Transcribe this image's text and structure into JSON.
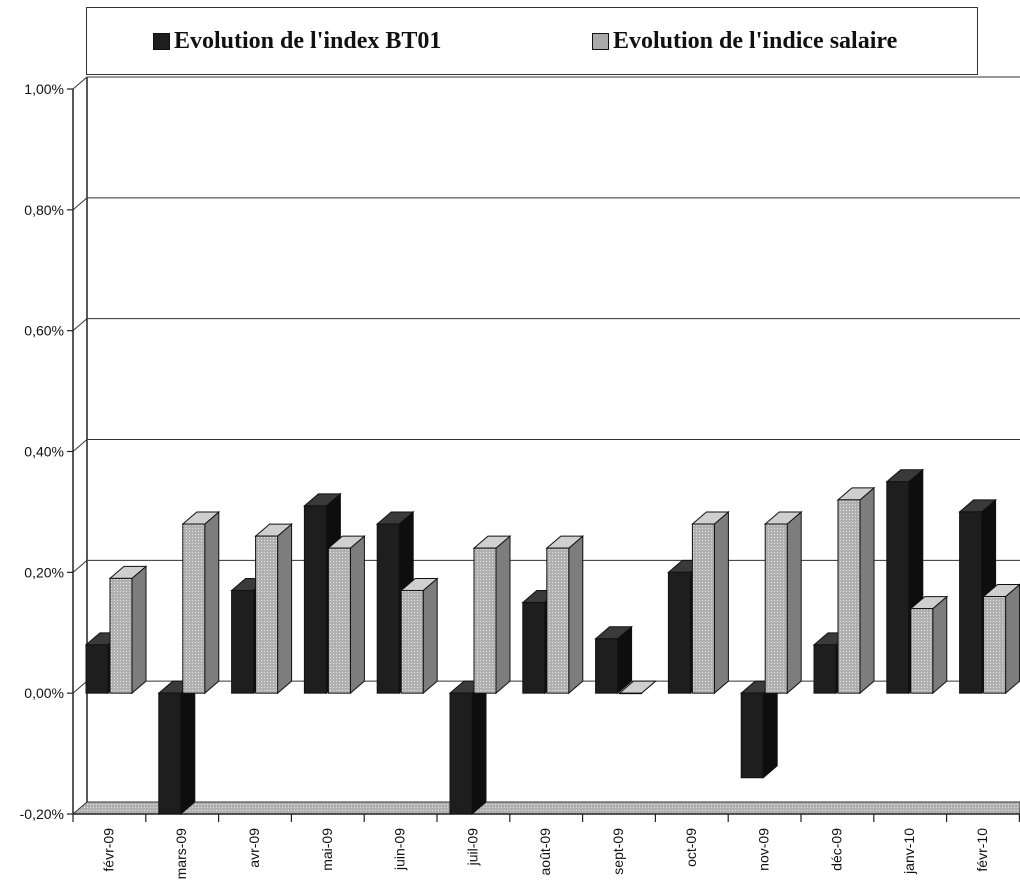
{
  "chart_data": {
    "type": "bar",
    "categories": [
      "févr-09",
      "mars-09",
      "avr-09",
      "mai-09",
      "juin-09",
      "juil-09",
      "août-09",
      "sept-09",
      "oct-09",
      "nov-09",
      "déc-09",
      "janv-10",
      "févr-10"
    ],
    "series": [
      {
        "name": "Evolution de l'index BT01",
        "color": "#1e1e1e",
        "values": [
          0.08,
          -0.2,
          0.17,
          0.31,
          0.28,
          -0.2,
          0.15,
          0.09,
          0.2,
          -0.14,
          0.08,
          0.35,
          0.3
        ]
      },
      {
        "name": "Evolution de l'indice salaire",
        "color": "#a9a9a9",
        "values": [
          0.19,
          0.28,
          0.26,
          0.24,
          0.17,
          0.24,
          0.24,
          0.0,
          0.28,
          0.28,
          0.32,
          0.14,
          0.16
        ]
      }
    ],
    "y_ticks": [
      {
        "value": 1.0,
        "label": "1,00%"
      },
      {
        "value": 0.8,
        "label": "0,80%"
      },
      {
        "value": 0.6,
        "label": "0,60%"
      },
      {
        "value": 0.4,
        "label": "0,40%"
      },
      {
        "value": 0.2,
        "label": "0,20%"
      },
      {
        "value": 0.0,
        "label": "0,00%"
      },
      {
        "value": -0.2,
        "label": "-0,20%"
      }
    ],
    "ylim": [
      -0.2,
      1.0
    ],
    "grid": true,
    "legend_position": "top",
    "style": "3d-clustered-column"
  }
}
